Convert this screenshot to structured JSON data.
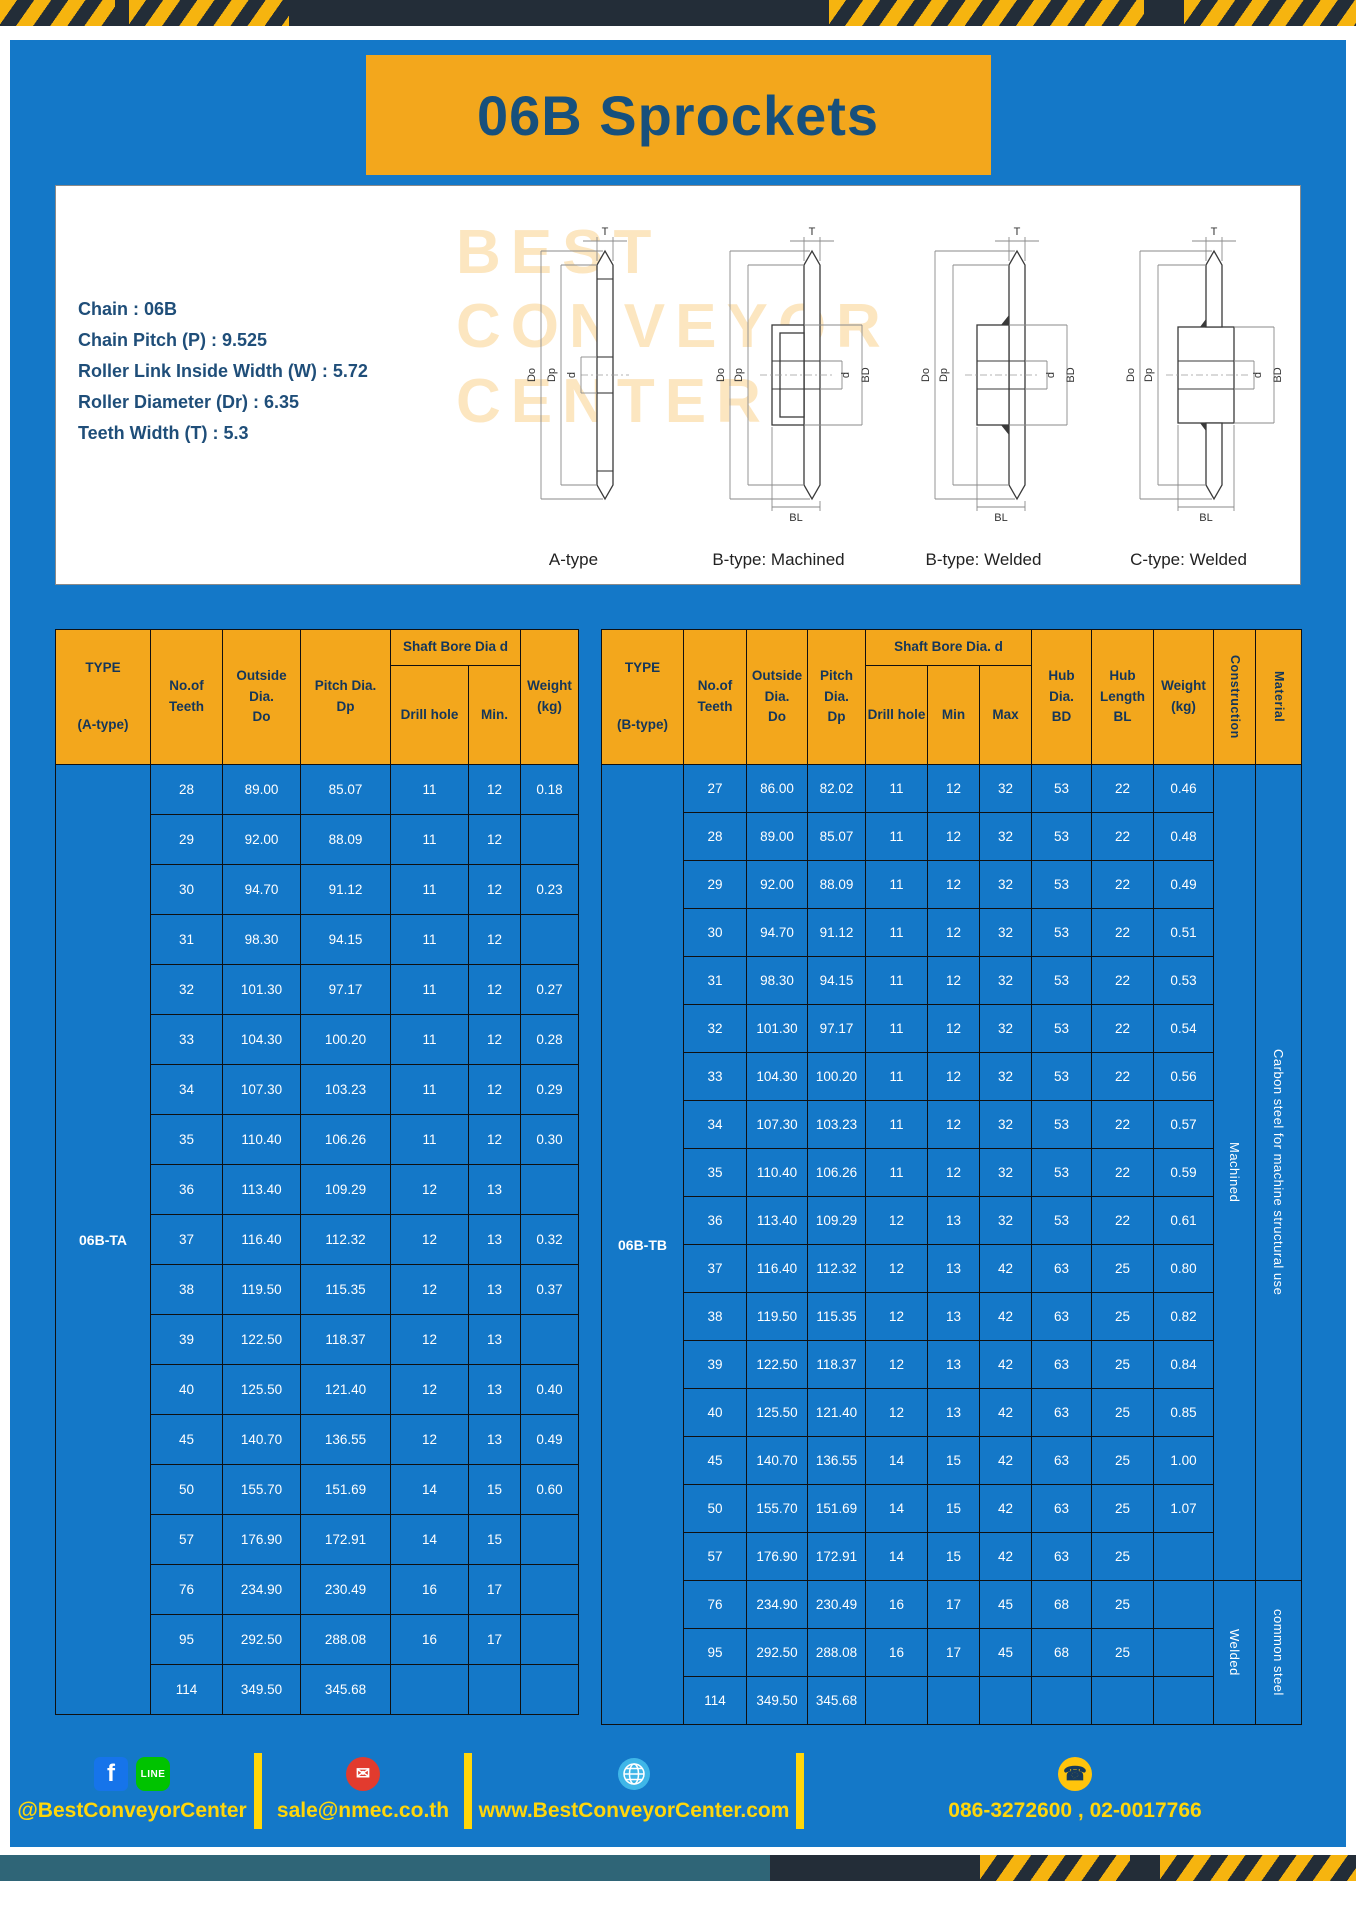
{
  "page": {
    "title": "06B Sprockets"
  },
  "specs": [
    "Chain : 06B",
    "Chain Pitch (P) : 9.525",
    "Roller Link Inside Width (W) : 5.72",
    "Roller Diameter (Dr) : 6.35",
    "Teeth Width (T) : 5.3"
  ],
  "watermark": [
    "BEST",
    "CONVEYOR",
    "CENTER"
  ],
  "dims": {
    "T": "T",
    "Do": "Do",
    "Dp": "Dp",
    "d": "d",
    "BD": "BD",
    "BL": "BL"
  },
  "diagrams": [
    {
      "label": "A-type"
    },
    {
      "label": "B-type: Machined"
    },
    {
      "label": "B-type: Welded"
    },
    {
      "label": "C-type: Welded"
    }
  ],
  "table_a": {
    "type_value": "06B-TA",
    "headers": {
      "type": "TYPE",
      "type_sub": "(A-type)",
      "teeth": "No.of\nTeeth",
      "outside": "Outside\nDia.\nDo",
      "pitch": "Pitch Dia.\nDp",
      "bore_group": "Shaft Bore Dia d",
      "drill": "Drill hole",
      "min": "Min.",
      "weight": "Weight\n(kg)"
    },
    "rows": [
      [
        "28",
        "89.00",
        "85.07",
        "11",
        "12",
        "0.18"
      ],
      [
        "29",
        "92.00",
        "88.09",
        "11",
        "12",
        ""
      ],
      [
        "30",
        "94.70",
        "91.12",
        "11",
        "12",
        "0.23"
      ],
      [
        "31",
        "98.30",
        "94.15",
        "11",
        "12",
        ""
      ],
      [
        "32",
        "101.30",
        "97.17",
        "11",
        "12",
        "0.27"
      ],
      [
        "33",
        "104.30",
        "100.20",
        "11",
        "12",
        "0.28"
      ],
      [
        "34",
        "107.30",
        "103.23",
        "11",
        "12",
        "0.29"
      ],
      [
        "35",
        "110.40",
        "106.26",
        "11",
        "12",
        "0.30"
      ],
      [
        "36",
        "113.40",
        "109.29",
        "12",
        "13",
        ""
      ],
      [
        "37",
        "116.40",
        "112.32",
        "12",
        "13",
        "0.32"
      ],
      [
        "38",
        "119.50",
        "115.35",
        "12",
        "13",
        "0.37"
      ],
      [
        "39",
        "122.50",
        "118.37",
        "12",
        "13",
        ""
      ],
      [
        "40",
        "125.50",
        "121.40",
        "12",
        "13",
        "0.40"
      ],
      [
        "45",
        "140.70",
        "136.55",
        "12",
        "13",
        "0.49"
      ],
      [
        "50",
        "155.70",
        "151.69",
        "14",
        "15",
        "0.60"
      ],
      [
        "57",
        "176.90",
        "172.91",
        "14",
        "15",
        ""
      ],
      [
        "76",
        "234.90",
        "230.49",
        "16",
        "17",
        ""
      ],
      [
        "95",
        "292.50",
        "288.08",
        "16",
        "17",
        ""
      ],
      [
        "114",
        "349.50",
        "345.68",
        "",
        "",
        ""
      ]
    ]
  },
  "table_b": {
    "type_value": "06B-TB",
    "headers": {
      "type": "TYPE",
      "type_sub": "(B-type)",
      "teeth": "No.of\nTeeth",
      "outside": "Outside\nDia.\nDo",
      "pitch": "Pitch\nDia.\nDp",
      "bore_group": "Shaft Bore Dia. d",
      "drill": "Drill hole",
      "min": "Min",
      "max": "Max",
      "hub_dia": "Hub\nDia.\nBD",
      "hub_len": "Hub\nLength\nBL",
      "weight": "Weight\n(kg)",
      "construction": "Construction",
      "material": "Material"
    },
    "rows": [
      [
        "27",
        "86.00",
        "82.02",
        "11",
        "12",
        "32",
        "53",
        "22",
        "0.46"
      ],
      [
        "28",
        "89.00",
        "85.07",
        "11",
        "12",
        "32",
        "53",
        "22",
        "0.48"
      ],
      [
        "29",
        "92.00",
        "88.09",
        "11",
        "12",
        "32",
        "53",
        "22",
        "0.49"
      ],
      [
        "30",
        "94.70",
        "91.12",
        "11",
        "12",
        "32",
        "53",
        "22",
        "0.51"
      ],
      [
        "31",
        "98.30",
        "94.15",
        "11",
        "12",
        "32",
        "53",
        "22",
        "0.53"
      ],
      [
        "32",
        "101.30",
        "97.17",
        "11",
        "12",
        "32",
        "53",
        "22",
        "0.54"
      ],
      [
        "33",
        "104.30",
        "100.20",
        "11",
        "12",
        "32",
        "53",
        "22",
        "0.56"
      ],
      [
        "34",
        "107.30",
        "103.23",
        "11",
        "12",
        "32",
        "53",
        "22",
        "0.57"
      ],
      [
        "35",
        "110.40",
        "106.26",
        "11",
        "12",
        "32",
        "53",
        "22",
        "0.59"
      ],
      [
        "36",
        "113.40",
        "109.29",
        "12",
        "13",
        "32",
        "53",
        "22",
        "0.61"
      ],
      [
        "37",
        "116.40",
        "112.32",
        "12",
        "13",
        "42",
        "63",
        "25",
        "0.80"
      ],
      [
        "38",
        "119.50",
        "115.35",
        "12",
        "13",
        "42",
        "63",
        "25",
        "0.82"
      ],
      [
        "39",
        "122.50",
        "118.37",
        "12",
        "13",
        "42",
        "63",
        "25",
        "0.84"
      ],
      [
        "40",
        "125.50",
        "121.40",
        "12",
        "13",
        "42",
        "63",
        "25",
        "0.85"
      ],
      [
        "45",
        "140.70",
        "136.55",
        "14",
        "15",
        "42",
        "63",
        "25",
        "1.00"
      ],
      [
        "50",
        "155.70",
        "151.69",
        "14",
        "15",
        "42",
        "63",
        "25",
        "1.07"
      ],
      [
        "57",
        "176.90",
        "172.91",
        "14",
        "15",
        "42",
        "63",
        "25",
        ""
      ],
      [
        "76",
        "234.90",
        "230.49",
        "16",
        "17",
        "45",
        "68",
        "25",
        ""
      ],
      [
        "95",
        "292.50",
        "288.08",
        "16",
        "17",
        "45",
        "68",
        "25",
        ""
      ],
      [
        "114",
        "349.50",
        "345.68",
        "",
        "",
        "",
        "",
        "",
        ""
      ]
    ],
    "construction": [
      {
        "label": "Machined",
        "span": 17
      },
      {
        "label": "Welded",
        "span": 3
      }
    ],
    "material": [
      {
        "label": "Carbon steel for machine structural use",
        "span": 17
      },
      {
        "label": "common steel",
        "span": 3
      }
    ]
  },
  "footer": {
    "icons": {
      "fb": "f",
      "line": "LINE",
      "mail": "✉",
      "phone": "☎"
    },
    "facebook_handle": "@BestConveyorCenter",
    "email": "sale@nmec.co.th",
    "website": "www.BestConveyorCenter.com",
    "phone": "086-3272600 , 02-0017766"
  }
}
